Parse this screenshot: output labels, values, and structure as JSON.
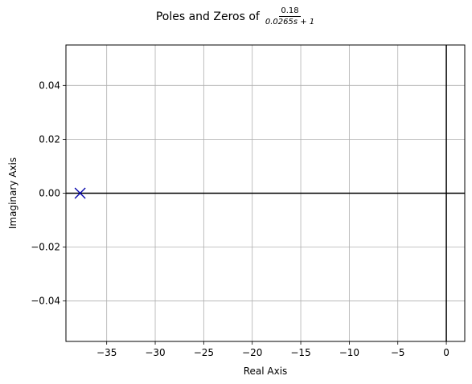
{
  "chart_data": {
    "type": "scatter",
    "title": {
      "text": "Poles and Zeros of",
      "numerator": "0.18",
      "denominator": "0.0265s + 1"
    },
    "xlabel": "Real Axis",
    "ylabel": "Imaginary Axis",
    "xlim": [
      -39.2,
      1.9
    ],
    "ylim": [
      -0.055,
      0.055
    ],
    "xticks": [
      -35,
      -30,
      -25,
      -20,
      -15,
      -10,
      -5,
      0
    ],
    "xtick_labels": [
      "−35",
      "−30",
      "−25",
      "−20",
      "−15",
      "−10",
      "−5",
      "0"
    ],
    "yticks": [
      0.04,
      0.02,
      0.0,
      -0.02,
      -0.04
    ],
    "ytick_labels": [
      "0.04",
      "0.02",
      "0.00",
      "−0.02",
      "−0.04"
    ],
    "grid": true,
    "poles": [
      {
        "re": -37.74,
        "im": 0.0
      }
    ],
    "zeros": [],
    "marker_color": "#0000aa",
    "grid_color": "#b0b0b0"
  }
}
